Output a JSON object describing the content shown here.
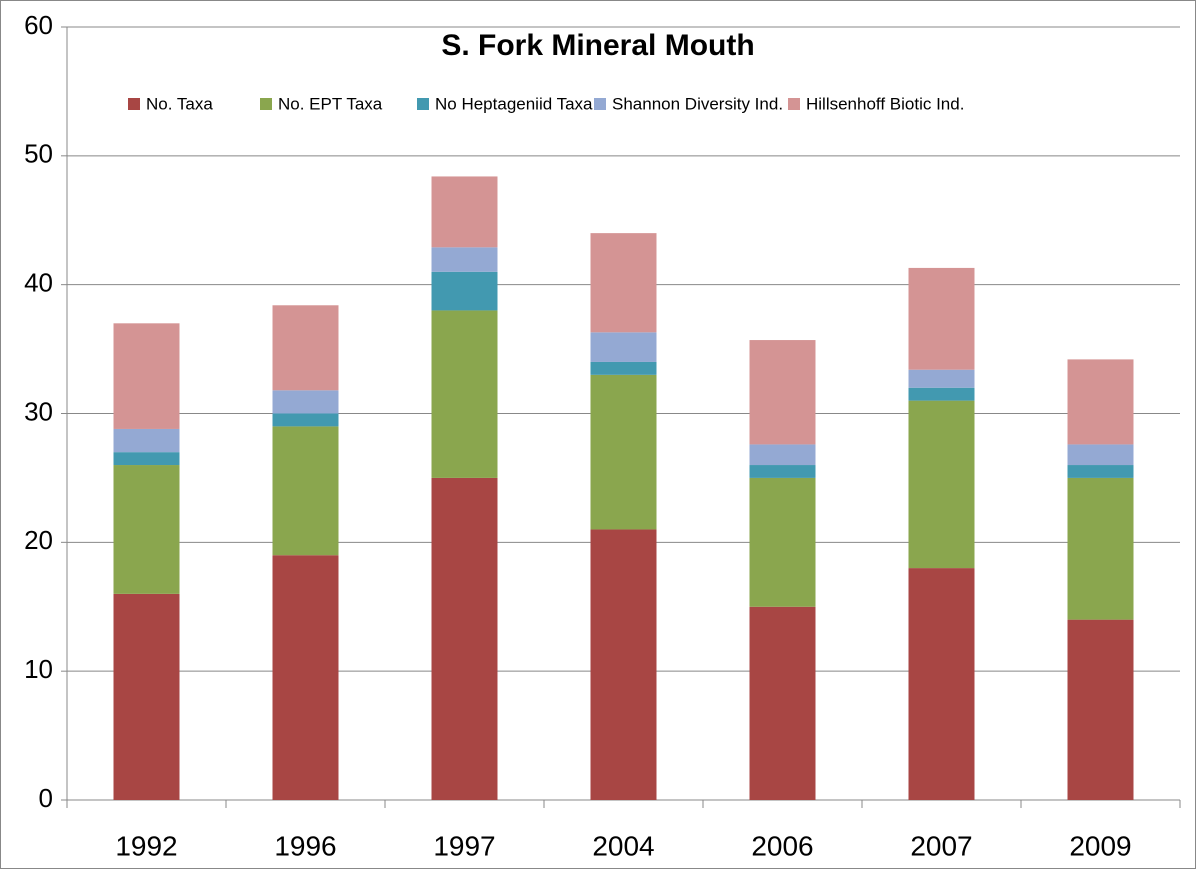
{
  "chart_data": {
    "type": "stacked_bar",
    "title": "S. Fork Mineral Mouth",
    "categories": [
      "1992",
      "1996",
      "1997",
      "2004",
      "2006",
      "2007",
      "2009"
    ],
    "series": [
      {
        "name": "No. Taxa",
        "color": "#a84644",
        "values": [
          16,
          19,
          25,
          21,
          15,
          18,
          14
        ]
      },
      {
        "name": "No. EPT Taxa",
        "color": "#8aa64e",
        "values": [
          10,
          10,
          13,
          12,
          10,
          13,
          11
        ]
      },
      {
        "name": "No Heptageniid Taxa",
        "color": "#4299b0",
        "values": [
          1,
          1,
          3,
          1,
          1,
          1,
          1
        ]
      },
      {
        "name": "Shannon Diversity Ind.",
        "color": "#94a9d3",
        "values": [
          1.8,
          1.8,
          1.9,
          2.3,
          1.6,
          1.4,
          1.6
        ]
      },
      {
        "name": "Hillsenhoff Biotic Ind.",
        "color": "#d49494",
        "values": [
          8.2,
          6.6,
          5.5,
          7.7,
          8.1,
          7.9,
          6.6
        ]
      }
    ],
    "ylim": [
      0,
      60
    ],
    "yticks": [
      0,
      10,
      20,
      30,
      40,
      50,
      60
    ],
    "grid": true,
    "legend": "top"
  }
}
